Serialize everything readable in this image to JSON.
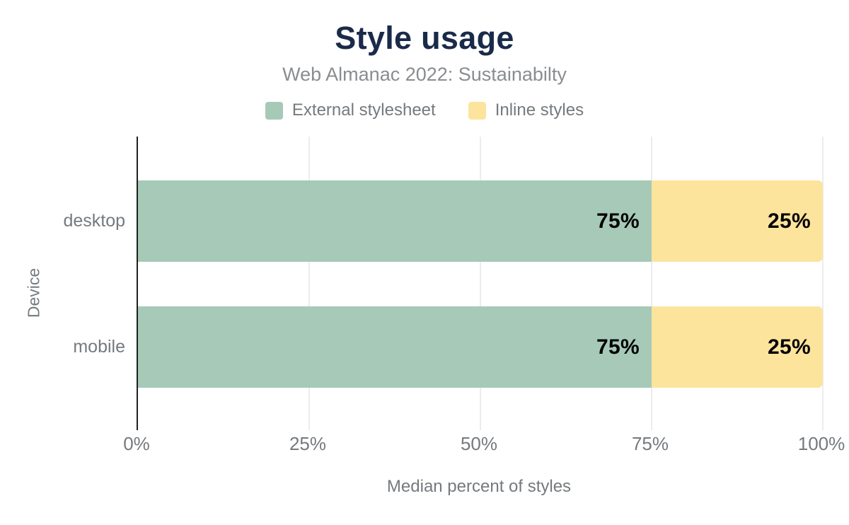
{
  "chart_data": {
    "type": "bar",
    "orientation": "horizontal",
    "stacked": true,
    "title": "Style usage",
    "subtitle": "Web Almanac 2022: Sustainabilty",
    "xlabel": "Median percent of styles",
    "ylabel": "Device",
    "categories": [
      "desktop",
      "mobile"
    ],
    "series": [
      {
        "name": "External stylesheet",
        "color": "#a6c9b8",
        "values": [
          75,
          75
        ],
        "data_labels": [
          "75%",
          "75%"
        ]
      },
      {
        "name": "Inline styles",
        "color": "#fde49d",
        "values": [
          25,
          25
        ],
        "data_labels": [
          "25%",
          "25%"
        ]
      }
    ],
    "xlim": [
      0,
      100
    ],
    "x_tick_values": [
      0,
      25,
      50,
      75,
      100
    ],
    "x_tick_labels": [
      "0%",
      "25%",
      "50%",
      "75%",
      "100%"
    ],
    "gridline_tick_indices": [
      1,
      2,
      3,
      4
    ],
    "grid": true,
    "legend_position": "top",
    "colors": {
      "title_text": "#1a2b49",
      "subtitle_text": "#8a8d90",
      "axis_text": "#757a7e",
      "data_label_text": "#000000",
      "gridline": "#ececec",
      "axis_line": "#1f1f1f",
      "background": "#ffffff"
    }
  }
}
